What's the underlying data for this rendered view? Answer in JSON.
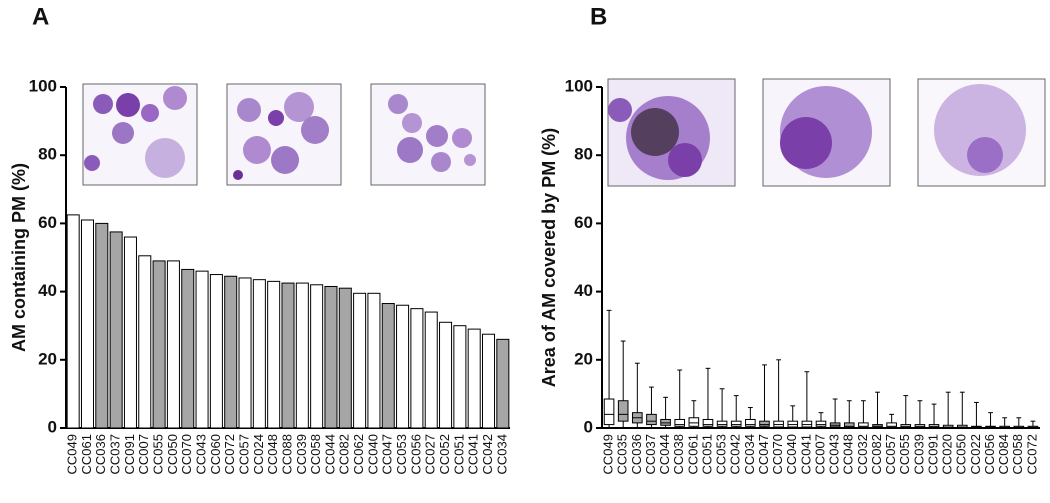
{
  "chart_data": [
    {
      "type": "bar",
      "panel_label": "A",
      "y_label": "AM  containing PM (%)",
      "categories": [
        "CC049",
        "CC061",
        "CC036",
        "CC037",
        "CC091",
        "CC007",
        "CC055",
        "CC050",
        "CC070",
        "CC043",
        "CC060",
        "CC072",
        "CC057",
        "CC024",
        "CC048",
        "CC088",
        "CC039",
        "CC058",
        "CC044",
        "CC082",
        "CC062",
        "CC040",
        "CC047",
        "CC053",
        "CC056",
        "CC027",
        "CC052",
        "CC051",
        "CC041",
        "CC042",
        "CC034"
      ],
      "values": [
        62.5,
        61,
        60,
        57.5,
        56,
        50.5,
        49,
        49,
        46.5,
        46,
        45,
        44.5,
        44,
        43.5,
        43,
        42.5,
        42.5,
        42,
        41.5,
        41,
        39.5,
        39.5,
        36.5,
        36,
        35,
        34,
        31,
        30,
        29,
        27.5,
        26
      ],
      "colors": [
        "#ffffff",
        "#ffffff",
        "#a6a6a6",
        "#a6a6a6",
        "#ffffff",
        "#ffffff",
        "#a6a6a6",
        "#ffffff",
        "#a6a6a6",
        "#ffffff",
        "#ffffff",
        "#a6a6a6",
        "#ffffff",
        "#ffffff",
        "#ffffff",
        "#a6a6a6",
        "#ffffff",
        "#ffffff",
        "#a6a6a6",
        "#a6a6a6",
        "#ffffff",
        "#ffffff",
        "#a6a6a6",
        "#ffffff",
        "#ffffff",
        "#ffffff",
        "#ffffff",
        "#ffffff",
        "#ffffff",
        "#ffffff",
        "#a6a6a6"
      ],
      "ylim": [
        0,
        100
      ],
      "yticks": [
        0,
        20,
        40,
        60,
        80,
        100
      ]
    },
    {
      "type": "box",
      "panel_label": "B",
      "y_label": "Area of AM covered by PM (%)",
      "categories": [
        "CC049",
        "CC035",
        "CC036",
        "CC037",
        "CC044",
        "CC038",
        "CC061",
        "CC051",
        "CC053",
        "CC042",
        "CC034",
        "CC047",
        "CC070",
        "CC040",
        "CC041",
        "CC007",
        "CC043",
        "CC048",
        "CC032",
        "CC082",
        "CC057",
        "CC055",
        "CC039",
        "CC091",
        "CC020",
        "CC050",
        "CC022",
        "CC056",
        "CC084",
        "CC058",
        "CC072"
      ],
      "values": [
        [
          0,
          1,
          4,
          8.5,
          34.5
        ],
        [
          0,
          2,
          4,
          8,
          25.5
        ],
        [
          0,
          1.5,
          3,
          4.5,
          19
        ],
        [
          0,
          1,
          2,
          4,
          12
        ],
        [
          0,
          0.8,
          1.5,
          2.5,
          9
        ],
        [
          0,
          0.5,
          1,
          2.5,
          17
        ],
        [
          0,
          0.5,
          1.5,
          3,
          8
        ],
        [
          0,
          0.5,
          1,
          2.5,
          17.5
        ],
        [
          0,
          0.5,
          1,
          2,
          11.5
        ],
        [
          0,
          0.5,
          1,
          2,
          9.5
        ],
        [
          0,
          0.5,
          1,
          2.5,
          6
        ],
        [
          0,
          0.5,
          1,
          2,
          18.5
        ],
        [
          0,
          0.3,
          1,
          2,
          20
        ],
        [
          0,
          0.3,
          1,
          2,
          6.5
        ],
        [
          0,
          0.3,
          1,
          2,
          16.5
        ],
        [
          0,
          0.5,
          1,
          2,
          4.5
        ],
        [
          0,
          0.3,
          0.8,
          1.5,
          8.5
        ],
        [
          0,
          0.2,
          0.5,
          1.5,
          8
        ],
        [
          0,
          0.2,
          0.5,
          1.5,
          8
        ],
        [
          0,
          0.2,
          0.5,
          1,
          10.5
        ],
        [
          0,
          0.2,
          0.5,
          1.5,
          4
        ],
        [
          0,
          0.2,
          0.5,
          1,
          9.5
        ],
        [
          0,
          0.2,
          0.5,
          1,
          8
        ],
        [
          0,
          0.2,
          0.5,
          1,
          7
        ],
        [
          0,
          0.1,
          0.3,
          0.8,
          10.5
        ],
        [
          0,
          0.1,
          0.3,
          0.8,
          10.5
        ],
        [
          0,
          0.1,
          0.3,
          0.5,
          7.5
        ],
        [
          0,
          0.1,
          0.3,
          0.5,
          4.5
        ],
        [
          0,
          0.1,
          0.2,
          0.5,
          3
        ],
        [
          0,
          0.1,
          0.2,
          0.5,
          3
        ],
        [
          0,
          0.1,
          0.2,
          0.5,
          2
        ]
      ],
      "colors": [
        "#ffffff",
        "#a6a6a6",
        "#a6a6a6",
        "#a6a6a6",
        "#a6a6a6",
        "#ffffff",
        "#ffffff",
        "#ffffff",
        "#ffffff",
        "#ffffff",
        "#ffffff",
        "#a6a6a6",
        "#ffffff",
        "#ffffff",
        "#ffffff",
        "#ffffff",
        "#a6a6a6",
        "#a6a6a6",
        "#ffffff",
        "#a6a6a6",
        "#ffffff",
        "#ffffff",
        "#ffffff",
        "#ffffff",
        "#ffffff",
        "#ffffff",
        "#ffffff",
        "#ffffff",
        "#ffffff",
        "#ffffff",
        "#ffffff"
      ],
      "ylim": [
        0,
        100
      ],
      "yticks": [
        0,
        20,
        40,
        60,
        80,
        100
      ]
    }
  ]
}
